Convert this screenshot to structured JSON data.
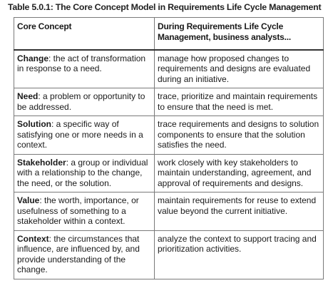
{
  "caption": "Table 5.0.1: The Core Concept Model in Requirements Life Cycle Management",
  "headers": {
    "col1": "Core Concept",
    "col2": "During Requirements Life Cycle Management, business analysts..."
  },
  "rows": [
    {
      "term": "Change",
      "definition": ": the act of transformation in response to a need.",
      "activity": "manage how proposed changes to requirements and designs are evaluated during an initiative."
    },
    {
      "term": "Need",
      "definition": ": a problem or opportunity to be addressed.",
      "activity": "trace, prioritize and maintain requirements to ensure that the need is met."
    },
    {
      "term": "Solution",
      "definition": ": a specific way of satisfying one or more needs in a context.",
      "activity": "trace requirements and designs to solution components to ensure that the solution satisfies the need."
    },
    {
      "term": "Stakeholder",
      "definition": ": a group or individual with a relationship to the change, the need, or the solution.",
      "activity": "work closely with key stakeholders to maintain understanding, agreement, and approval of requirements and designs."
    },
    {
      "term": "Value",
      "definition": ": the worth, importance, or usefulness of something to a stakeholder within a context.",
      "activity": "maintain requirements for reuse to extend value beyond the current initiative."
    },
    {
      "term": "Context",
      "definition": ": the circumstances that influence, are influenced by, and provide understanding of the change.",
      "activity": "analyze the context to support tracing and prioritization activities."
    }
  ]
}
